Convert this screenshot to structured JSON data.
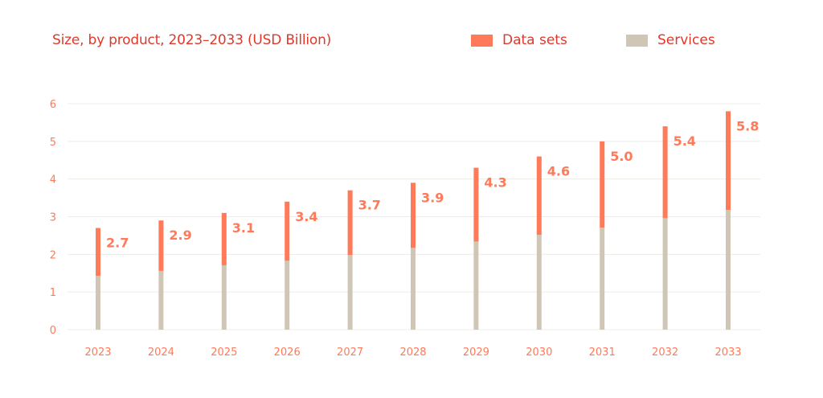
{
  "chart_data": {
    "type": "bar",
    "stacked": true,
    "title": "Size, by product, 2023–2033 (USD Billion)",
    "xlabel": "",
    "ylabel": "",
    "categories": [
      "2023",
      "2024",
      "2025",
      "2026",
      "2027",
      "2028",
      "2029",
      "2030",
      "2031",
      "2032",
      "2033"
    ],
    "series": [
      {
        "name": "Services",
        "color": "#cfc6b6",
        "values": [
          1.43,
          1.56,
          1.71,
          1.83,
          1.98,
          2.17,
          2.34,
          2.52,
          2.71,
          2.96,
          3.18
        ]
      },
      {
        "name": "Data sets",
        "color": "#ff7a59",
        "values": [
          1.27,
          1.34,
          1.39,
          1.57,
          1.72,
          1.73,
          1.96,
          2.08,
          2.29,
          2.44,
          2.62
        ]
      }
    ],
    "totals": [
      2.7,
      2.9,
      3.1,
      3.4,
      3.7,
      3.9,
      4.3,
      4.6,
      5.0,
      5.4,
      5.8
    ],
    "total_labels": [
      "2.7",
      "2.9",
      "3.1",
      "3.4",
      "3.7",
      "3.9",
      "4.3",
      "4.6",
      "5.0",
      "5.4",
      "5.8"
    ],
    "yticks": [
      0,
      1,
      2,
      3,
      4,
      5,
      6
    ],
    "ylim": [
      0,
      6
    ],
    "grid": true,
    "legend": {
      "placement": "top-right",
      "entries": [
        {
          "label": "Data sets",
          "color": "#ff7a59"
        },
        {
          "label": "Services",
          "color": "#cfc6b6"
        }
      ]
    }
  },
  "colors": {
    "title": "#e0382a",
    "tick_text": "#ff7a59",
    "gridline": "#eeece6"
  }
}
